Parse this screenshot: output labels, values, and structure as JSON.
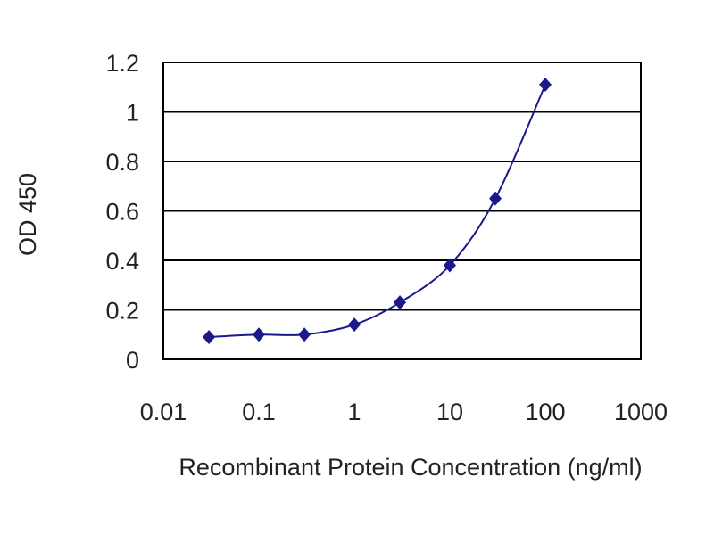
{
  "chart_data": {
    "type": "scatter",
    "xlabel": "Recombinant Protein Concentration (ng/ml)",
    "ylabel": "OD 450",
    "x_scale": "log",
    "xlim": [
      0.01,
      1000
    ],
    "ylim": [
      0,
      1.2
    ],
    "x_ticks": [
      "0.01",
      "0.1",
      "1",
      "10",
      "100",
      "1000"
    ],
    "y_ticks": [
      "0",
      "0.2",
      "0.4",
      "0.6",
      "0.8",
      "1",
      "1.2"
    ],
    "grid": "horizontal",
    "series": [
      {
        "x": [
          0.03,
          0.1,
          0.3,
          1,
          3,
          10,
          30,
          100
        ],
        "y": [
          0.09,
          0.1,
          0.1,
          0.14,
          0.23,
          0.38,
          0.65,
          1.11
        ],
        "marker": "diamond",
        "smooth_line": true,
        "color": "#1a1a8c"
      }
    ]
  }
}
